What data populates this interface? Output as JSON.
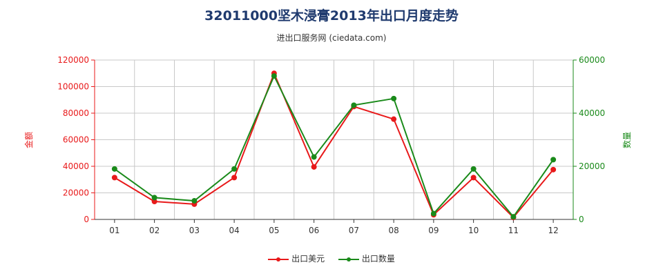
{
  "title": "32011000坚木浸膏2013年出口月度走势",
  "subtitle": "进出口服务网 (ciedata.com)",
  "colors": {
    "value": "#e8191a",
    "quantity": "#1a8a1a",
    "grid": "#c8c8c8",
    "axis": "#333333"
  },
  "chart_data": {
    "type": "line",
    "categories": [
      "01",
      "02",
      "03",
      "04",
      "05",
      "06",
      "07",
      "08",
      "09",
      "10",
      "11",
      "12"
    ],
    "y_left": {
      "label": "金额",
      "ticks": [
        "0",
        "20000",
        "40000",
        "60000",
        "80000",
        "100000",
        "120000"
      ],
      "range": [
        0,
        120000
      ]
    },
    "y_right": {
      "label": "数量",
      "ticks": [
        "0",
        "20000",
        "40000",
        "60000"
      ],
      "range": [
        0,
        60000
      ]
    },
    "grid": true,
    "legend_position": "bottom-center",
    "series": [
      {
        "name": "出口美元",
        "axis": "left",
        "values": [
          31500,
          13500,
          11500,
          31500,
          110000,
          39500,
          85000,
          75500,
          3500,
          31500,
          1500,
          37500
        ]
      },
      {
        "name": "出口数量",
        "axis": "right",
        "values": [
          19000,
          8200,
          7000,
          19000,
          54000,
          23500,
          43000,
          45500,
          2200,
          19000,
          1000,
          22500
        ]
      }
    ]
  }
}
